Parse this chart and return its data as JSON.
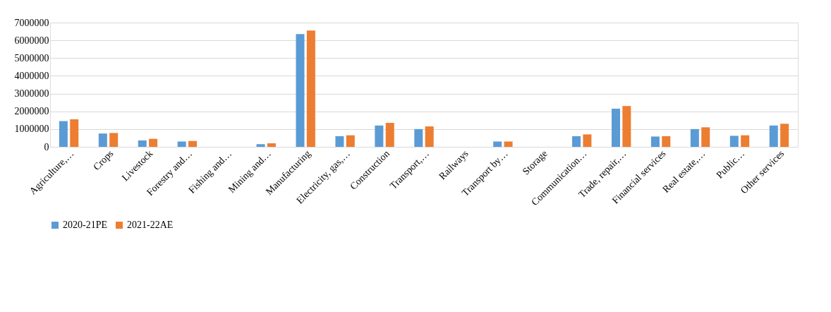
{
  "chart_data": {
    "type": "bar",
    "categories": [
      "Agriculture,…",
      "Crops",
      "Livestock",
      "Forestry and…",
      "Fishing and…",
      "Mining and…",
      "Manufacturing",
      "Electricity, gas,…",
      "Construction",
      "Transport,…",
      "Railways",
      "Transport by…",
      "Storage",
      "Communication…",
      "Trade, repair,…",
      "Financial services",
      "Real estate,…",
      "Public…",
      "Other services"
    ],
    "series": [
      {
        "name": "2020-21PE",
        "color": "#5b9bd5",
        "values": [
          1450000,
          750000,
          360000,
          300000,
          0,
          150000,
          6350000,
          600000,
          1200000,
          1000000,
          0,
          300000,
          0,
          600000,
          2150000,
          580000,
          1000000,
          620000,
          1200000
        ]
      },
      {
        "name": "2021-22AE",
        "color": "#ed7d31",
        "values": [
          1550000,
          780000,
          450000,
          330000,
          0,
          200000,
          6550000,
          650000,
          1350000,
          1150000,
          0,
          300000,
          0,
          700000,
          2300000,
          600000,
          1100000,
          650000,
          1300000
        ]
      }
    ],
    "ylim": [
      0,
      7000000
    ],
    "yticks": [
      0,
      1000000,
      2000000,
      3000000,
      4000000,
      5000000,
      6000000,
      7000000
    ],
    "grid": "y",
    "legend": "bottom"
  }
}
